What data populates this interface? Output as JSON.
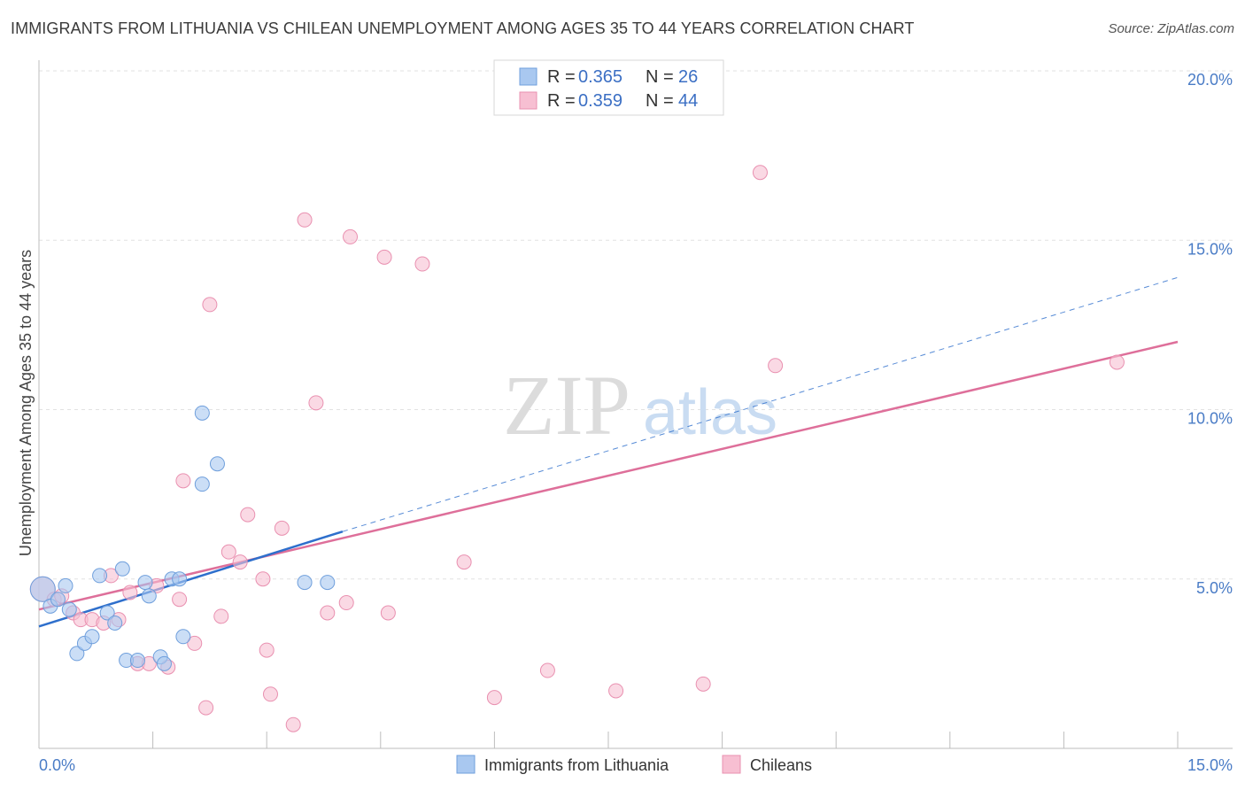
{
  "title": "IMMIGRANTS FROM LITHUANIA VS CHILEAN UNEMPLOYMENT AMONG AGES 35 TO 44 YEARS CORRELATION CHART",
  "source": "Source: ZipAtlas.com",
  "watermark": {
    "zip": "ZIP",
    "atlas": "atlas"
  },
  "legend_top": [
    {
      "r_label": "R = ",
      "r_value": "0.365",
      "n_label": "N = ",
      "n_value": "26",
      "color": "#a9c8f0",
      "stroke": "#6f9fdc"
    },
    {
      "r_label": "R = ",
      "r_value": "0.359",
      "n_label": "N = ",
      "n_value": "44",
      "color": "#f7bfd2",
      "stroke": "#e990b0"
    }
  ],
  "chart_data": {
    "type": "scatter",
    "title": "IMMIGRANTS FROM LITHUANIA VS CHILEAN UNEMPLOYMENT AMONG AGES 35 TO 44 YEARS CORRELATION CHART",
    "xlabel": "",
    "ylabel": "Unemployment Among Ages 35 to 44 years",
    "xlim": [
      0,
      15
    ],
    "ylim": [
      0,
      20
    ],
    "x_tick_labels": [
      "0.0%",
      "15.0%"
    ],
    "y_ticks": [
      5,
      10,
      15,
      20
    ],
    "y_tick_labels": [
      "5.0%",
      "10.0%",
      "15.0%",
      "20.0%"
    ],
    "grid": true,
    "legend_position": "bottom",
    "series": [
      {
        "name": "Immigrants from Lithuania",
        "color": "#a9c8f0",
        "stroke": "#6f9fdc",
        "trend_color": "#2e6fcc",
        "trend": {
          "x0": 0,
          "y0": 3.6,
          "x1": 4.0,
          "y1": 6.4,
          "dash_to_x": 15.0,
          "dash_to_y": 13.9
        },
        "points": [
          [
            0.05,
            4.7
          ],
          [
            0.15,
            4.2
          ],
          [
            0.25,
            4.4
          ],
          [
            0.35,
            4.8
          ],
          [
            0.4,
            4.1
          ],
          [
            0.5,
            2.8
          ],
          [
            0.6,
            3.1
          ],
          [
            0.7,
            3.3
          ],
          [
            0.8,
            5.1
          ],
          [
            0.9,
            4.0
          ],
          [
            1.0,
            3.7
          ],
          [
            1.1,
            5.3
          ],
          [
            1.15,
            2.6
          ],
          [
            1.3,
            2.6
          ],
          [
            1.4,
            4.9
          ],
          [
            1.45,
            4.5
          ],
          [
            1.6,
            2.7
          ],
          [
            1.65,
            2.5
          ],
          [
            1.75,
            5.0
          ],
          [
            1.85,
            5.0
          ],
          [
            1.9,
            3.3
          ],
          [
            2.15,
            9.9
          ],
          [
            2.15,
            7.8
          ],
          [
            2.35,
            8.4
          ],
          [
            3.5,
            4.9
          ],
          [
            3.8,
            4.9
          ]
        ]
      },
      {
        "name": "Chileans",
        "color": "#f7bfd2",
        "stroke": "#e990b0",
        "trend_color": "#de6f9a",
        "trend": {
          "x0": 0,
          "y0": 4.1,
          "x1": 15.0,
          "y1": 12.0
        },
        "points": [
          [
            0.05,
            4.7
          ],
          [
            0.2,
            4.4
          ],
          [
            0.3,
            4.5
          ],
          [
            0.45,
            4.0
          ],
          [
            0.55,
            3.8
          ],
          [
            0.7,
            3.8
          ],
          [
            0.85,
            3.7
          ],
          [
            0.95,
            5.1
          ],
          [
            1.05,
            3.8
          ],
          [
            1.2,
            4.6
          ],
          [
            1.3,
            2.5
          ],
          [
            1.45,
            2.5
          ],
          [
            1.55,
            4.8
          ],
          [
            1.7,
            2.4
          ],
          [
            1.85,
            4.4
          ],
          [
            1.9,
            7.9
          ],
          [
            2.05,
            3.1
          ],
          [
            2.2,
            1.2
          ],
          [
            2.25,
            13.1
          ],
          [
            2.4,
            3.9
          ],
          [
            2.5,
            5.8
          ],
          [
            2.65,
            5.5
          ],
          [
            2.75,
            6.9
          ],
          [
            2.95,
            5.0
          ],
          [
            3.0,
            2.9
          ],
          [
            3.05,
            1.6
          ],
          [
            3.2,
            6.5
          ],
          [
            3.35,
            0.7
          ],
          [
            3.5,
            15.6
          ],
          [
            3.65,
            10.2
          ],
          [
            3.8,
            4.0
          ],
          [
            4.05,
            4.3
          ],
          [
            4.1,
            15.1
          ],
          [
            4.55,
            14.5
          ],
          [
            4.6,
            4.0
          ],
          [
            5.05,
            14.3
          ],
          [
            5.6,
            5.5
          ],
          [
            6.0,
            1.5
          ],
          [
            6.7,
            2.3
          ],
          [
            7.6,
            1.7
          ],
          [
            8.75,
            1.9
          ],
          [
            9.5,
            17.0
          ],
          [
            9.7,
            11.3
          ],
          [
            14.2,
            11.4
          ]
        ]
      }
    ]
  }
}
